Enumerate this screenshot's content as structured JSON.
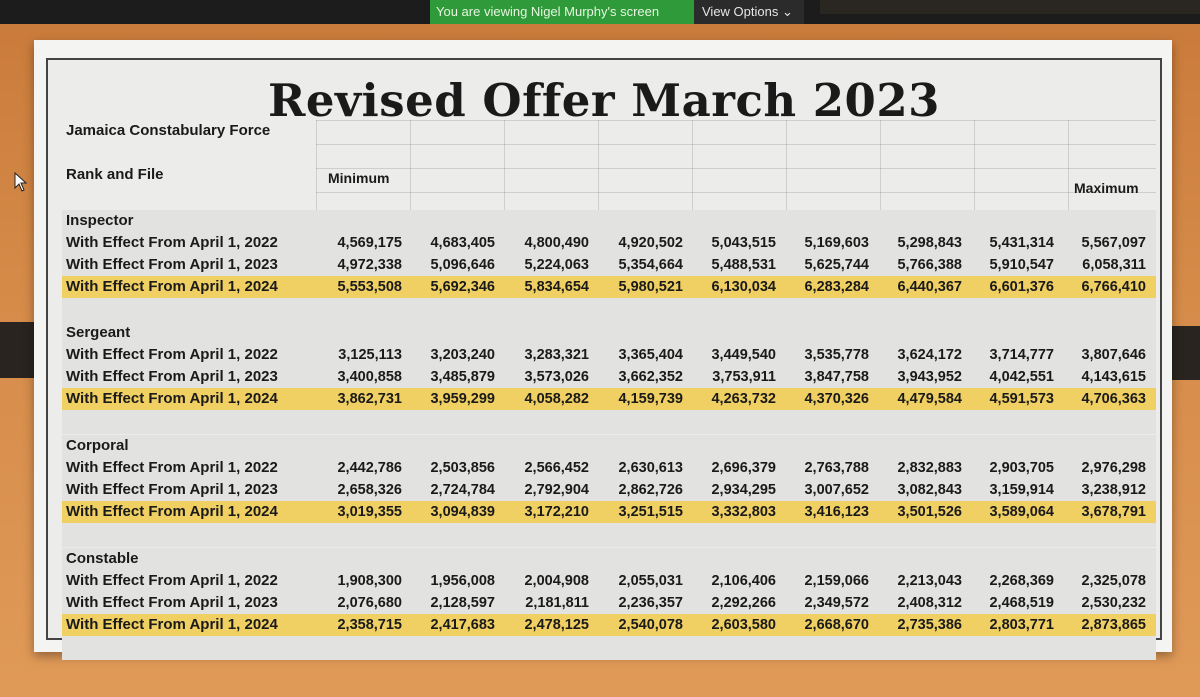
{
  "zoom_bar": {
    "share_banner": "You are viewing Nigel Murphy's screen",
    "view_options": "View Options ⌄"
  },
  "sheet": {
    "title": "Revised Offer March 2023",
    "org": "Jamaica Constabulary Force",
    "rank_and_file": "Rank and File",
    "minimum": "Minimum",
    "maximum": "Maximum"
  },
  "sections": [
    {
      "rank": "Inspector",
      "rows": [
        {
          "label": "With Effect From April 1, 2022",
          "highlight": false,
          "values": [
            "4,569,175",
            "4,683,405",
            "4,800,490",
            "4,920,502",
            "5,043,515",
            "5,169,603",
            "5,298,843",
            "5,431,314",
            "5,567,097"
          ]
        },
        {
          "label": "With Effect From April 1, 2023",
          "highlight": false,
          "values": [
            "4,972,338",
            "5,096,646",
            "5,224,063",
            "5,354,664",
            "5,488,531",
            "5,625,744",
            "5,766,388",
            "5,910,547",
            "6,058,311"
          ]
        },
        {
          "label": "With Effect From April 1, 2024",
          "highlight": true,
          "values": [
            "5,553,508",
            "5,692,346",
            "5,834,654",
            "5,980,521",
            "6,130,034",
            "6,283,284",
            "6,440,367",
            "6,601,376",
            "6,766,410"
          ]
        }
      ]
    },
    {
      "rank": "Sergeant",
      "rows": [
        {
          "label": "With Effect From April 1, 2022",
          "highlight": false,
          "values": [
            "3,125,113",
            "3,203,240",
            "3,283,321",
            "3,365,404",
            "3,449,540",
            "3,535,778",
            "3,624,172",
            "3,714,777",
            "3,807,646"
          ]
        },
        {
          "label": "With Effect From April 1, 2023",
          "highlight": false,
          "values": [
            "3,400,858",
            "3,485,879",
            "3,573,026",
            "3,662,352",
            "3,753,911",
            "3,847,758",
            "3,943,952",
            "4,042,551",
            "4,143,615"
          ]
        },
        {
          "label": "With Effect From April 1, 2024",
          "highlight": true,
          "values": [
            "3,862,731",
            "3,959,299",
            "4,058,282",
            "4,159,739",
            "4,263,732",
            "4,370,326",
            "4,479,584",
            "4,591,573",
            "4,706,363"
          ]
        }
      ]
    },
    {
      "rank": "Corporal",
      "rows": [
        {
          "label": "With Effect From April 1, 2022",
          "highlight": false,
          "values": [
            "2,442,786",
            "2,503,856",
            "2,566,452",
            "2,630,613",
            "2,696,379",
            "2,763,788",
            "2,832,883",
            "2,903,705",
            "2,976,298"
          ]
        },
        {
          "label": "With Effect From April 1, 2023",
          "highlight": false,
          "values": [
            "2,658,326",
            "2,724,784",
            "2,792,904",
            "2,862,726",
            "2,934,295",
            "3,007,652",
            "3,082,843",
            "3,159,914",
            "3,238,912"
          ]
        },
        {
          "label": "With Effect From April 1, 2024",
          "highlight": true,
          "values": [
            "3,019,355",
            "3,094,839",
            "3,172,210",
            "3,251,515",
            "3,332,803",
            "3,416,123",
            "3,501,526",
            "3,589,064",
            "3,678,791"
          ]
        }
      ]
    },
    {
      "rank": "Constable",
      "rows": [
        {
          "label": "With Effect From April 1, 2022",
          "highlight": false,
          "values": [
            "1,908,300",
            "1,956,008",
            "2,004,908",
            "2,055,031",
            "2,106,406",
            "2,159,066",
            "2,213,043",
            "2,268,369",
            "2,325,078"
          ]
        },
        {
          "label": "With Effect From April 1, 2023",
          "highlight": false,
          "values": [
            "2,076,680",
            "2,128,597",
            "2,181,811",
            "2,236,357",
            "2,292,266",
            "2,349,572",
            "2,408,312",
            "2,468,519",
            "2,530,232"
          ]
        },
        {
          "label": "With Effect From April 1, 2024",
          "highlight": true,
          "values": [
            "2,358,715",
            "2,417,683",
            "2,478,125",
            "2,540,078",
            "2,603,580",
            "2,668,670",
            "2,735,386",
            "2,803,771",
            "2,873,865"
          ]
        }
      ]
    }
  ],
  "colors": {
    "highlight_row": "#f0d063",
    "share_banner": "#2e9a3a"
  }
}
